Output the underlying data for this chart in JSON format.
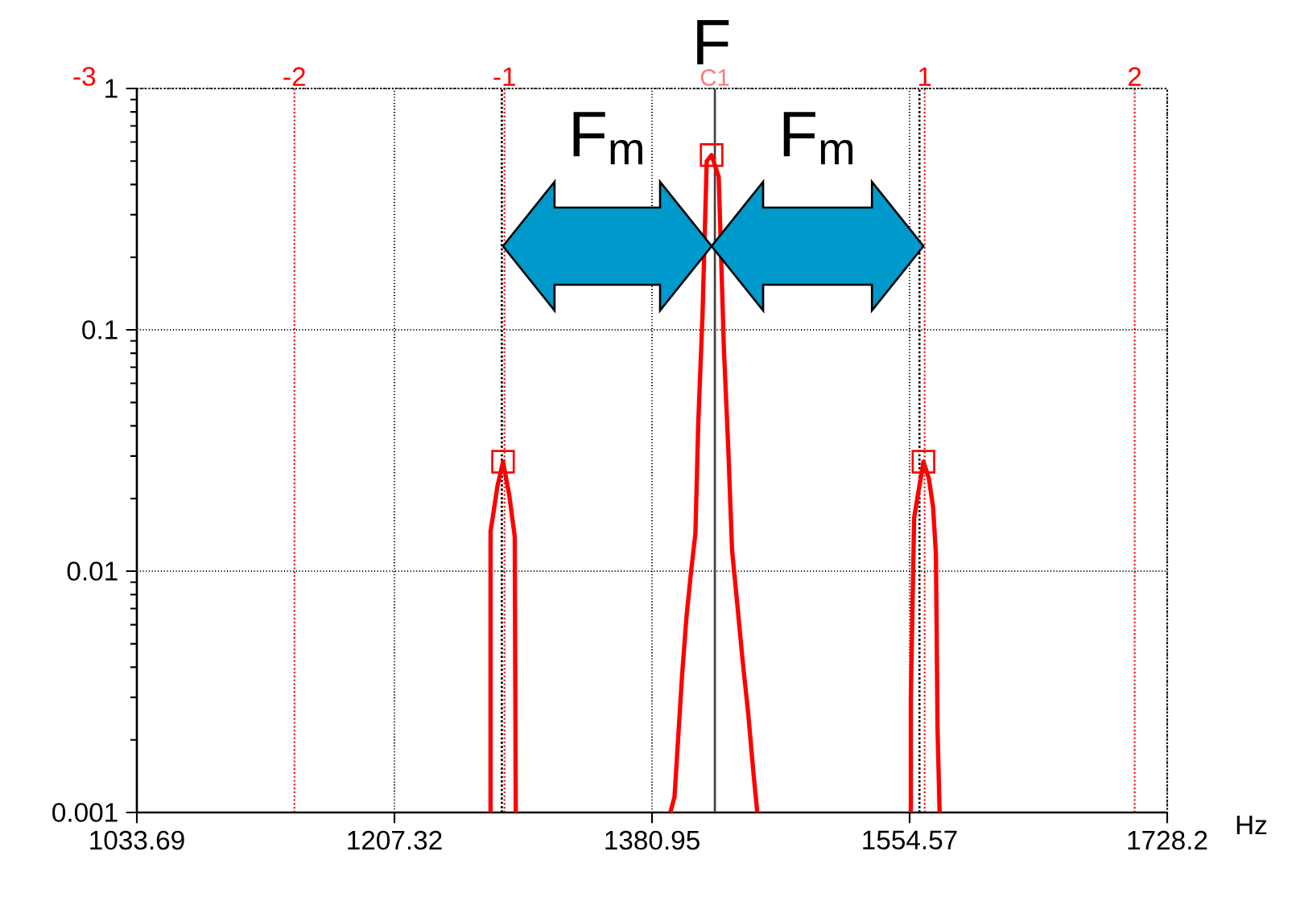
{
  "chart_data": {
    "type": "line",
    "xlabel": "Hz",
    "log": "y",
    "grid": true,
    "xlim": [
      1033.69,
      1728.2
    ],
    "xticks": [
      1033.69,
      1207.32,
      1380.95,
      1554.57,
      1728.2
    ],
    "ylim": [
      0.001,
      1
    ],
    "yticks": [
      0.001,
      0.01,
      0.1,
      1
    ],
    "x2lim": [
      -3,
      2.155
    ],
    "x2ticks": [
      -3,
      -2,
      -1,
      1,
      2
    ],
    "series": [
      {
        "color": "#ff0000",
        "x": [
          1272.1,
          1272.1,
          1274.6,
          1276.8,
          1280.5,
          1284.8,
          1288.4,
          1289.1,
          1340,
          1393.3,
          1396.1,
          1398.7,
          1401.2,
          1404.1,
          1407.0,
          1410.2,
          1412.1,
          1415.0,
          1417.8,
          1421.1,
          1425.9,
          1429.4,
          1432.4,
          1434.9,
          1438.4,
          1442.1,
          1445.7,
          1449.3,
          1451.9,
          1500,
          1555.4,
          1555.4,
          1557.6,
          1559.7,
          1563.9,
          1567.5,
          1570.4,
          1572.3,
          1573.4,
          1574.8
        ],
        "values": [
          0.001,
          0.0146,
          0.0184,
          0.0226,
          0.0284,
          0.0205,
          0.0139,
          0.001,
          null,
          0.001,
          0.00116,
          0.0021,
          0.0037,
          0.0064,
          0.0096,
          0.0144,
          0.041,
          0.116,
          0.5,
          0.53,
          0.43,
          0.083,
          0.0315,
          0.0122,
          0.0073,
          0.0042,
          0.0026,
          0.00146,
          0.001,
          null,
          0.001,
          0.003,
          0.0166,
          0.0199,
          0.0284,
          0.0243,
          0.0184,
          0.0117,
          0.0022,
          0.001
        ]
      },
      {
        "type": "scatter",
        "marker": "square",
        "color": "#ff0000",
        "x": [
          1280.5,
          1421.1,
          1563.9
        ],
        "values": [
          0.0284,
          0.53,
          0.0284
        ]
      }
    ],
    "ref_lines": [
      {
        "axis": "x",
        "value": 1423.3,
        "label": "C1",
        "color": "#404040",
        "line_style": "solid"
      },
      {
        "axis": "x",
        "value": 1279.7,
        "color": "#000000",
        "line_style": "dotted"
      },
      {
        "axis": "x",
        "value": 1561.2,
        "color": "#000000",
        "line_style": "dotted"
      }
    ],
    "annotations": [
      "F$_{m}$",
      "F$_{m}$",
      "F"
    ]
  }
}
